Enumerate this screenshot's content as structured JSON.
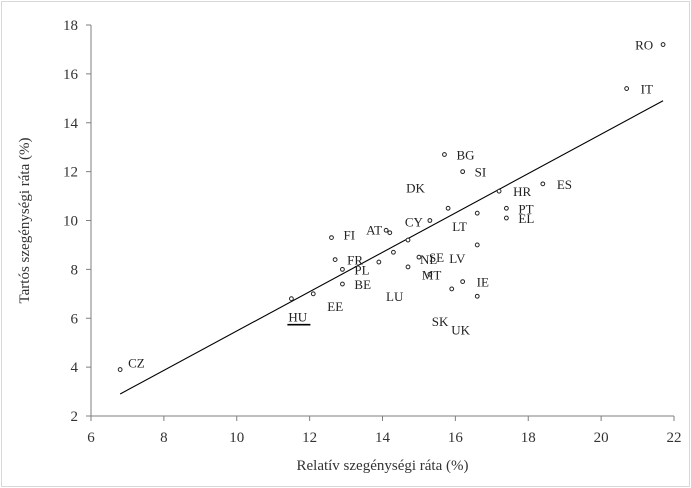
{
  "chart_data": {
    "type": "scatter",
    "title": "",
    "xlabel": "Relatív  szegénységi  ráta (%)",
    "ylabel": "Tartós szegénységi  ráta (%)",
    "xlim": [
      6,
      22
    ],
    "ylim": [
      2,
      18
    ],
    "xticks": [
      6,
      8,
      10,
      12,
      14,
      16,
      18,
      20,
      22
    ],
    "yticks": [
      2,
      4,
      6,
      8,
      10,
      12,
      14,
      16,
      18
    ],
    "grid": false,
    "trendline": {
      "x": [
        6.8,
        21.7
      ],
      "y": [
        2.9,
        14.9
      ]
    },
    "points": [
      {
        "label": "RO",
        "x": 21.7,
        "y": 17.2
      },
      {
        "label": "IT",
        "x": 20.7,
        "y": 15.4
      },
      {
        "label": "BG",
        "x": 15.7,
        "y": 12.7
      },
      {
        "label": "SI",
        "x": 16.2,
        "y": 12.0
      },
      {
        "label": "HR",
        "x": 17.2,
        "y": 11.2
      },
      {
        "label": "ES",
        "x": 18.4,
        "y": 11.5
      },
      {
        "label": "PT",
        "x": 17.4,
        "y": 10.5
      },
      {
        "label": "EL",
        "x": 17.4,
        "y": 10.1
      },
      {
        "label": "DK",
        "x": 15.8,
        "y": 10.5
      },
      {
        "label": "CY",
        "x": 15.3,
        "y": 10.0
      },
      {
        "label": "LT",
        "x": 16.6,
        "y": 10.3
      },
      {
        "label": "LV",
        "x": 16.6,
        "y": 9.0
      },
      {
        "label": "FI",
        "x": 12.6,
        "y": 9.3
      },
      {
        "label": "AT",
        "x": 14.1,
        "y": 9.6
      },
      {
        "label": "NL",
        "x": 14.7,
        "y": 9.2
      },
      {
        "label": "FR",
        "x": 12.7,
        "y": 8.4
      },
      {
        "label": "SE",
        "x": 15.0,
        "y": 8.5
      },
      {
        "label": "MT",
        "x": 15.3,
        "y": 7.8
      },
      {
        "label": "PL",
        "x": 12.9,
        "y": 8.0
      },
      {
        "label": "BE",
        "x": 12.9,
        "y": 7.4
      },
      {
        "label": "LU",
        "x": 14.7,
        "y": 8.1
      },
      {
        "label": "SK",
        "x": 15.9,
        "y": 7.2
      },
      {
        "label": "IE",
        "x": 16.2,
        "y": 7.5
      },
      {
        "label": "UK",
        "x": 16.6,
        "y": 6.9
      },
      {
        "label": "EE",
        "x": 12.1,
        "y": 7.0
      },
      {
        "label": "HU",
        "x": 11.5,
        "y": 6.8
      },
      {
        "label": "CZ",
        "x": 6.8,
        "y": 3.9
      }
    ],
    "extra_points": [
      {
        "x": 14.2,
        "y": 9.5
      },
      {
        "x": 14.3,
        "y": 8.7
      },
      {
        "x": 13.9,
        "y": 8.3
      }
    ],
    "highlight": "HU"
  }
}
